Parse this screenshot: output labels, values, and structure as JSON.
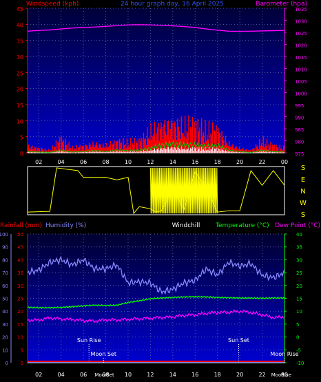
{
  "chart_data": [
    {
      "type": "line",
      "title": "24 hour graph day, 16 April 2025",
      "left_axis_label": "Windspeed (kph)",
      "right_axis_label": "Barometer (hpa)",
      "left_ylim": [
        0,
        45
      ],
      "left_ticks": [
        "0",
        "5",
        "10",
        "15",
        "20",
        "25",
        "30",
        "35",
        "40",
        "45"
      ],
      "right_ylim": [
        975,
        1035
      ],
      "right_ticks": [
        "975",
        "980",
        "985",
        "990",
        "995",
        "1000",
        "1005",
        "1010",
        "1015",
        "1020",
        "1025",
        "1030",
        "1035"
      ],
      "xlim": [
        1,
        24
      ],
      "x_ticks": [
        "02",
        "04",
        "06",
        "08",
        "10",
        "12",
        "14",
        "16",
        "18",
        "20",
        "22",
        "00"
      ],
      "series": [
        {
          "name": "Barometer",
          "color": "#ff00ff",
          "axis": "right",
          "x": [
            1,
            2,
            3,
            4,
            5,
            6,
            7,
            8,
            9,
            10,
            11,
            12,
            13,
            14,
            15,
            16,
            17,
            18,
            19,
            20,
            21,
            22,
            23,
            24
          ],
          "values": [
            1025.5,
            1025.8,
            1026,
            1026.4,
            1026.8,
            1027,
            1027.2,
            1027.5,
            1027.8,
            1028.1,
            1028.2,
            1028.1,
            1027.9,
            1027.7,
            1027.4,
            1027,
            1026.4,
            1025.9,
            1025.5,
            1025.4,
            1025.5,
            1025.6,
            1025.7,
            1025.8
          ]
        },
        {
          "name": "Gust",
          "color": "#ff0000",
          "axis": "left",
          "x": [
            1,
            2,
            3,
            4,
            5,
            6,
            7,
            8,
            9,
            10,
            11,
            12,
            13,
            14,
            15,
            16,
            17,
            18,
            19,
            20,
            21,
            22,
            23,
            24
          ],
          "values": [
            3,
            2,
            1,
            6,
            2,
            3,
            4,
            3,
            5,
            4,
            5,
            9,
            12,
            13,
            11,
            12,
            9,
            10,
            4,
            2,
            1,
            5,
            3,
            2
          ]
        },
        {
          "name": "Average",
          "color": "#00cc00",
          "axis": "left",
          "x": [
            1,
            2,
            3,
            4,
            5,
            6,
            7,
            8,
            9,
            10,
            11,
            12,
            13,
            14,
            15,
            16,
            17,
            18,
            19,
            20,
            21,
            22,
            23,
            24
          ],
          "values": [
            0.5,
            0.3,
            0.2,
            1,
            0.3,
            0.5,
            0.8,
            0.5,
            1,
            0.8,
            1,
            1.8,
            3,
            3.5,
            3,
            3.2,
            2.4,
            2.8,
            1,
            0.4,
            0.2,
            1,
            0.5,
            0.3
          ]
        }
      ]
    },
    {
      "type": "line",
      "subtitle": "Wind direction",
      "direction_labels": [
        "S",
        "E",
        "N",
        "W",
        "S"
      ],
      "xlim": [
        1,
        24
      ],
      "series": [
        {
          "name": "Wind direction",
          "color": "#ffff00",
          "x": [
            1,
            3,
            3.6,
            4.5,
            5.5,
            6,
            8,
            9,
            10,
            10.5,
            11,
            12,
            12.5,
            13,
            14,
            15,
            16,
            17,
            18,
            19,
            20,
            21,
            22,
            23,
            24
          ],
          "values": [
            20,
            25,
            350,
            340,
            330,
            280,
            280,
            260,
            280,
            10,
            60,
            45,
            20,
            30,
            200,
            40,
            320,
            200,
            20,
            30,
            30,
            330,
            220,
            330,
            220
          ]
        }
      ]
    },
    {
      "type": "line",
      "rain_label": "Rainfall (mm)",
      "humidity_label": "Humidity (%)",
      "windchill_label": "Windchill",
      "temp_label": "Temperature (°C)",
      "dew_label": "Dew Point (°C)",
      "rain_ticks": [
        "0",
        "5",
        "10",
        "15",
        "20",
        "25",
        "30",
        "35",
        "40",
        "45",
        "50"
      ],
      "humidity_ticks": [
        "0",
        "10",
        "20",
        "30",
        "40",
        "50",
        "60",
        "70",
        "80",
        "90",
        "100"
      ],
      "temp_ticks": [
        "-10",
        "-5",
        "0",
        "5",
        "10",
        "15",
        "20",
        "25",
        "30",
        "35",
        "40"
      ],
      "temp_ylim": [
        -10,
        40
      ],
      "xlim": [
        1,
        24
      ],
      "x_ticks": [
        "02",
        "04",
        "06",
        "08",
        "10",
        "12",
        "14",
        "16",
        "18",
        "20",
        "22",
        "00"
      ],
      "events": [
        {
          "label": "Sun Rise",
          "x": 6.5
        },
        {
          "label": "Moon Set",
          "x": 7.8
        },
        {
          "label": "Sun Set",
          "x": 19.9
        },
        {
          "label": "Moon Rise",
          "x": 24
        }
      ],
      "bottom_labels": [
        "Moon",
        "Set",
        "Moon",
        "Rise"
      ],
      "series": [
        {
          "name": "Humidity",
          "color": "#8888ff",
          "axis": "humidity",
          "x": [
            1,
            2,
            3,
            4,
            5,
            6,
            7,
            8,
            9,
            10,
            11,
            12,
            13,
            14,
            15,
            16,
            17,
            18,
            19,
            20,
            21,
            22,
            23,
            24
          ],
          "values": [
            70,
            72,
            78,
            80,
            76,
            80,
            73,
            73,
            76,
            62,
            63,
            62,
            55,
            57,
            62,
            64,
            73,
            68,
            78,
            75,
            77,
            68,
            66,
            70
          ]
        },
        {
          "name": "Temperature",
          "color": "#00ff00",
          "axis": "temp",
          "x": [
            1,
            2,
            3,
            4,
            5,
            6,
            7,
            8,
            9,
            10,
            11,
            12,
            13,
            14,
            15,
            16,
            17,
            18,
            19,
            20,
            21,
            22,
            23,
            24
          ],
          "values": [
            11.5,
            11.5,
            11.5,
            11.6,
            11.8,
            12,
            12.2,
            12.1,
            12.3,
            13.5,
            14.2,
            15,
            15.2,
            15.3,
            15.4,
            15.5,
            15.5,
            15.4,
            15.4,
            15.3,
            15.2,
            15,
            15,
            15
          ]
        },
        {
          "name": "Dew Point",
          "color": "#ff00ff",
          "axis": "temp",
          "x": [
            1,
            2,
            3,
            4,
            5,
            6,
            7,
            8,
            9,
            10,
            11,
            12,
            13,
            14,
            15,
            16,
            17,
            18,
            19,
            20,
            21,
            22,
            23,
            24
          ],
          "values": [
            6.5,
            6.6,
            7.4,
            7,
            6.8,
            6.4,
            6.2,
            6.7,
            6.6,
            6.9,
            7.1,
            7.3,
            7.6,
            7.8,
            8.4,
            8.6,
            9.2,
            9.5,
            9.6,
            10,
            9.5,
            8.6,
            7.5,
            7.8
          ]
        },
        {
          "name": "Rainfall",
          "color": "#ff0000",
          "axis": "rain",
          "x": [
            1,
            24
          ],
          "values": [
            0,
            0
          ]
        }
      ]
    }
  ]
}
